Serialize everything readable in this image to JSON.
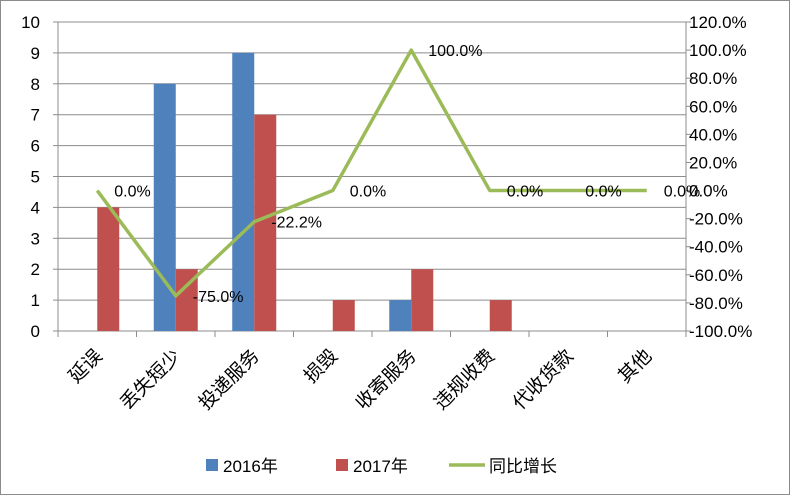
{
  "chart_data": {
    "type": "bar",
    "categories": [
      "延误",
      "丢失短少",
      "投递服务",
      "损毁",
      "收寄服务",
      "违规收费",
      "代收货款",
      "其他"
    ],
    "series": [
      {
        "name": "2016年",
        "type": "bar",
        "axis": "left",
        "color": "#4f81bd",
        "values": [
          0,
          8,
          9,
          0,
          1,
          0,
          0,
          0
        ]
      },
      {
        "name": "2017年",
        "type": "bar",
        "axis": "left",
        "color": "#c0504d",
        "values": [
          4,
          2,
          7,
          1,
          2,
          1,
          0,
          0
        ]
      },
      {
        "name": "同比增长",
        "type": "line",
        "axis": "right",
        "color": "#9bbb59",
        "values": [
          0.0,
          -75.0,
          -22.2,
          0.0,
          100.0,
          0.0,
          0.0,
          0.0
        ]
      }
    ],
    "data_labels": [
      "0.0%",
      "-75.0%",
      "-22.2%",
      "0.0%",
      "100.0%",
      "0.0%",
      "0.0%",
      "0.0%"
    ],
    "y_left": {
      "min": 0,
      "max": 10,
      "step": 1,
      "ticks": [
        "0",
        "1",
        "2",
        "3",
        "4",
        "5",
        "6",
        "7",
        "8",
        "9",
        "10"
      ]
    },
    "y_right": {
      "min": -100,
      "max": 120,
      "step": 20,
      "ticks": [
        "-100.0%",
        "-80.0%",
        "-60.0%",
        "-40.0%",
        "-20.0%",
        "0.0%",
        "20.0%",
        "40.0%",
        "60.0%",
        "80.0%",
        "100.0%",
        "120.0%"
      ]
    },
    "grid": true,
    "legend_position": "bottom",
    "title": "",
    "xlabel": "",
    "ylabel": ""
  }
}
